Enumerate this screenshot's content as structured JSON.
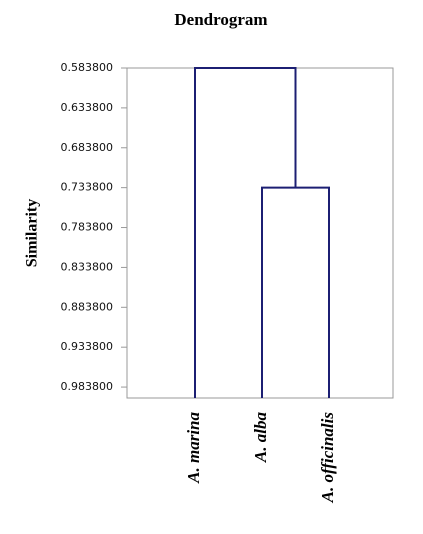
{
  "chart_data": {
    "type": "dendrogram",
    "title": "Dendrogram",
    "y_label": "Similarity",
    "leaves": [
      "A. marina",
      "A. alba",
      "A. officinalis"
    ],
    "merges": [
      {
        "left": 1,
        "right": 2,
        "height": 0.7338
      },
      {
        "left": 0,
        "right": 3,
        "height": 0.5838
      }
    ],
    "color": "#1c1f73",
    "y_reversed": true,
    "ylim": [
      0.5838,
      0.9975
    ],
    "yticks": [
      {
        "value": 0.5838,
        "label": "0.583800"
      },
      {
        "value": 0.6338,
        "label": "0.633800"
      },
      {
        "value": 0.6838,
        "label": "0.683800"
      },
      {
        "value": 0.7338,
        "label": "0.733800"
      },
      {
        "value": 0.7838,
        "label": "0.783800"
      },
      {
        "value": 0.8338,
        "label": "0.833800"
      },
      {
        "value": 0.8838,
        "label": "0.883800"
      },
      {
        "value": 0.9338,
        "label": "0.933800"
      },
      {
        "value": 0.9838,
        "label": "0.983800"
      }
    ]
  }
}
